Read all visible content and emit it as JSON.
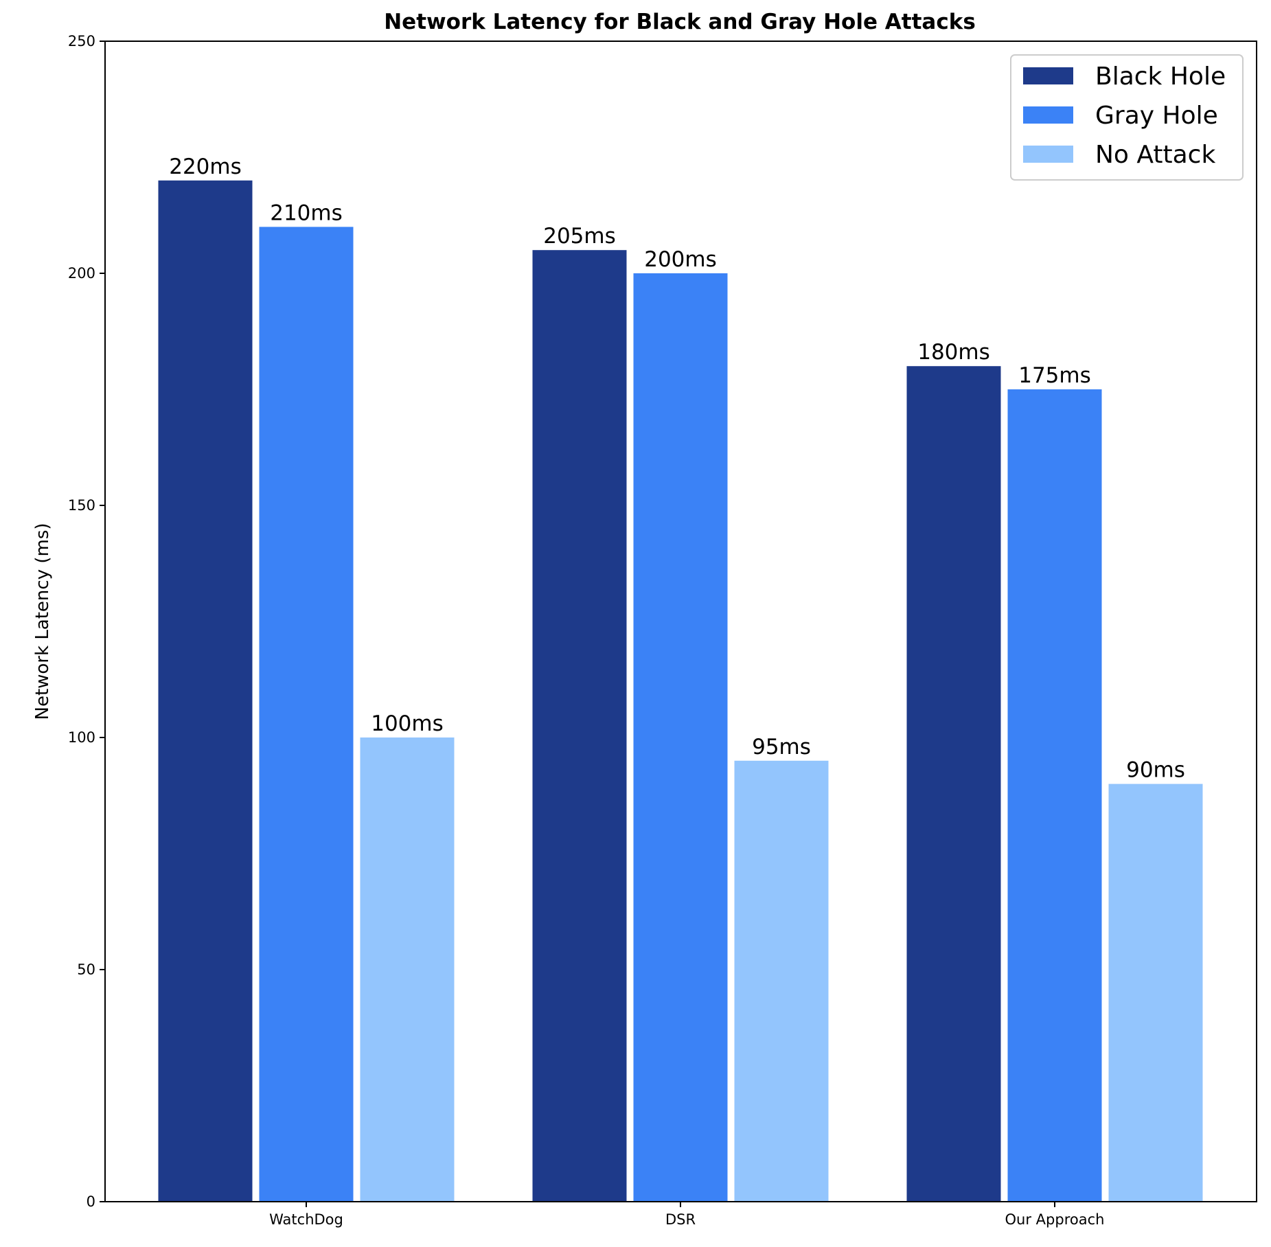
{
  "chart_data": {
    "type": "bar",
    "title": "Network Latency for Black and Gray Hole Attacks",
    "xlabel": "",
    "ylabel": "Network Latency (ms)",
    "categories": [
      "WatchDog",
      "DSR",
      "Our Approach"
    ],
    "series": [
      {
        "name": "Black Hole",
        "values": [
          220,
          205,
          180
        ],
        "labels": [
          "220ms",
          "205ms",
          "180ms"
        ],
        "color": "#1e3a8a"
      },
      {
        "name": "Gray Hole",
        "values": [
          210,
          200,
          175
        ],
        "labels": [
          "210ms",
          "200ms",
          "175ms"
        ],
        "color": "#3b82f6"
      },
      {
        "name": "No Attack",
        "values": [
          100,
          95,
          90
        ],
        "labels": [
          "100ms",
          "95ms",
          "90ms"
        ],
        "color": "#93c5fd"
      }
    ],
    "ylim": [
      0,
      250
    ],
    "yticks": [
      0,
      50,
      100,
      150,
      200,
      250
    ],
    "grid": false,
    "legend_position": "top-right"
  }
}
